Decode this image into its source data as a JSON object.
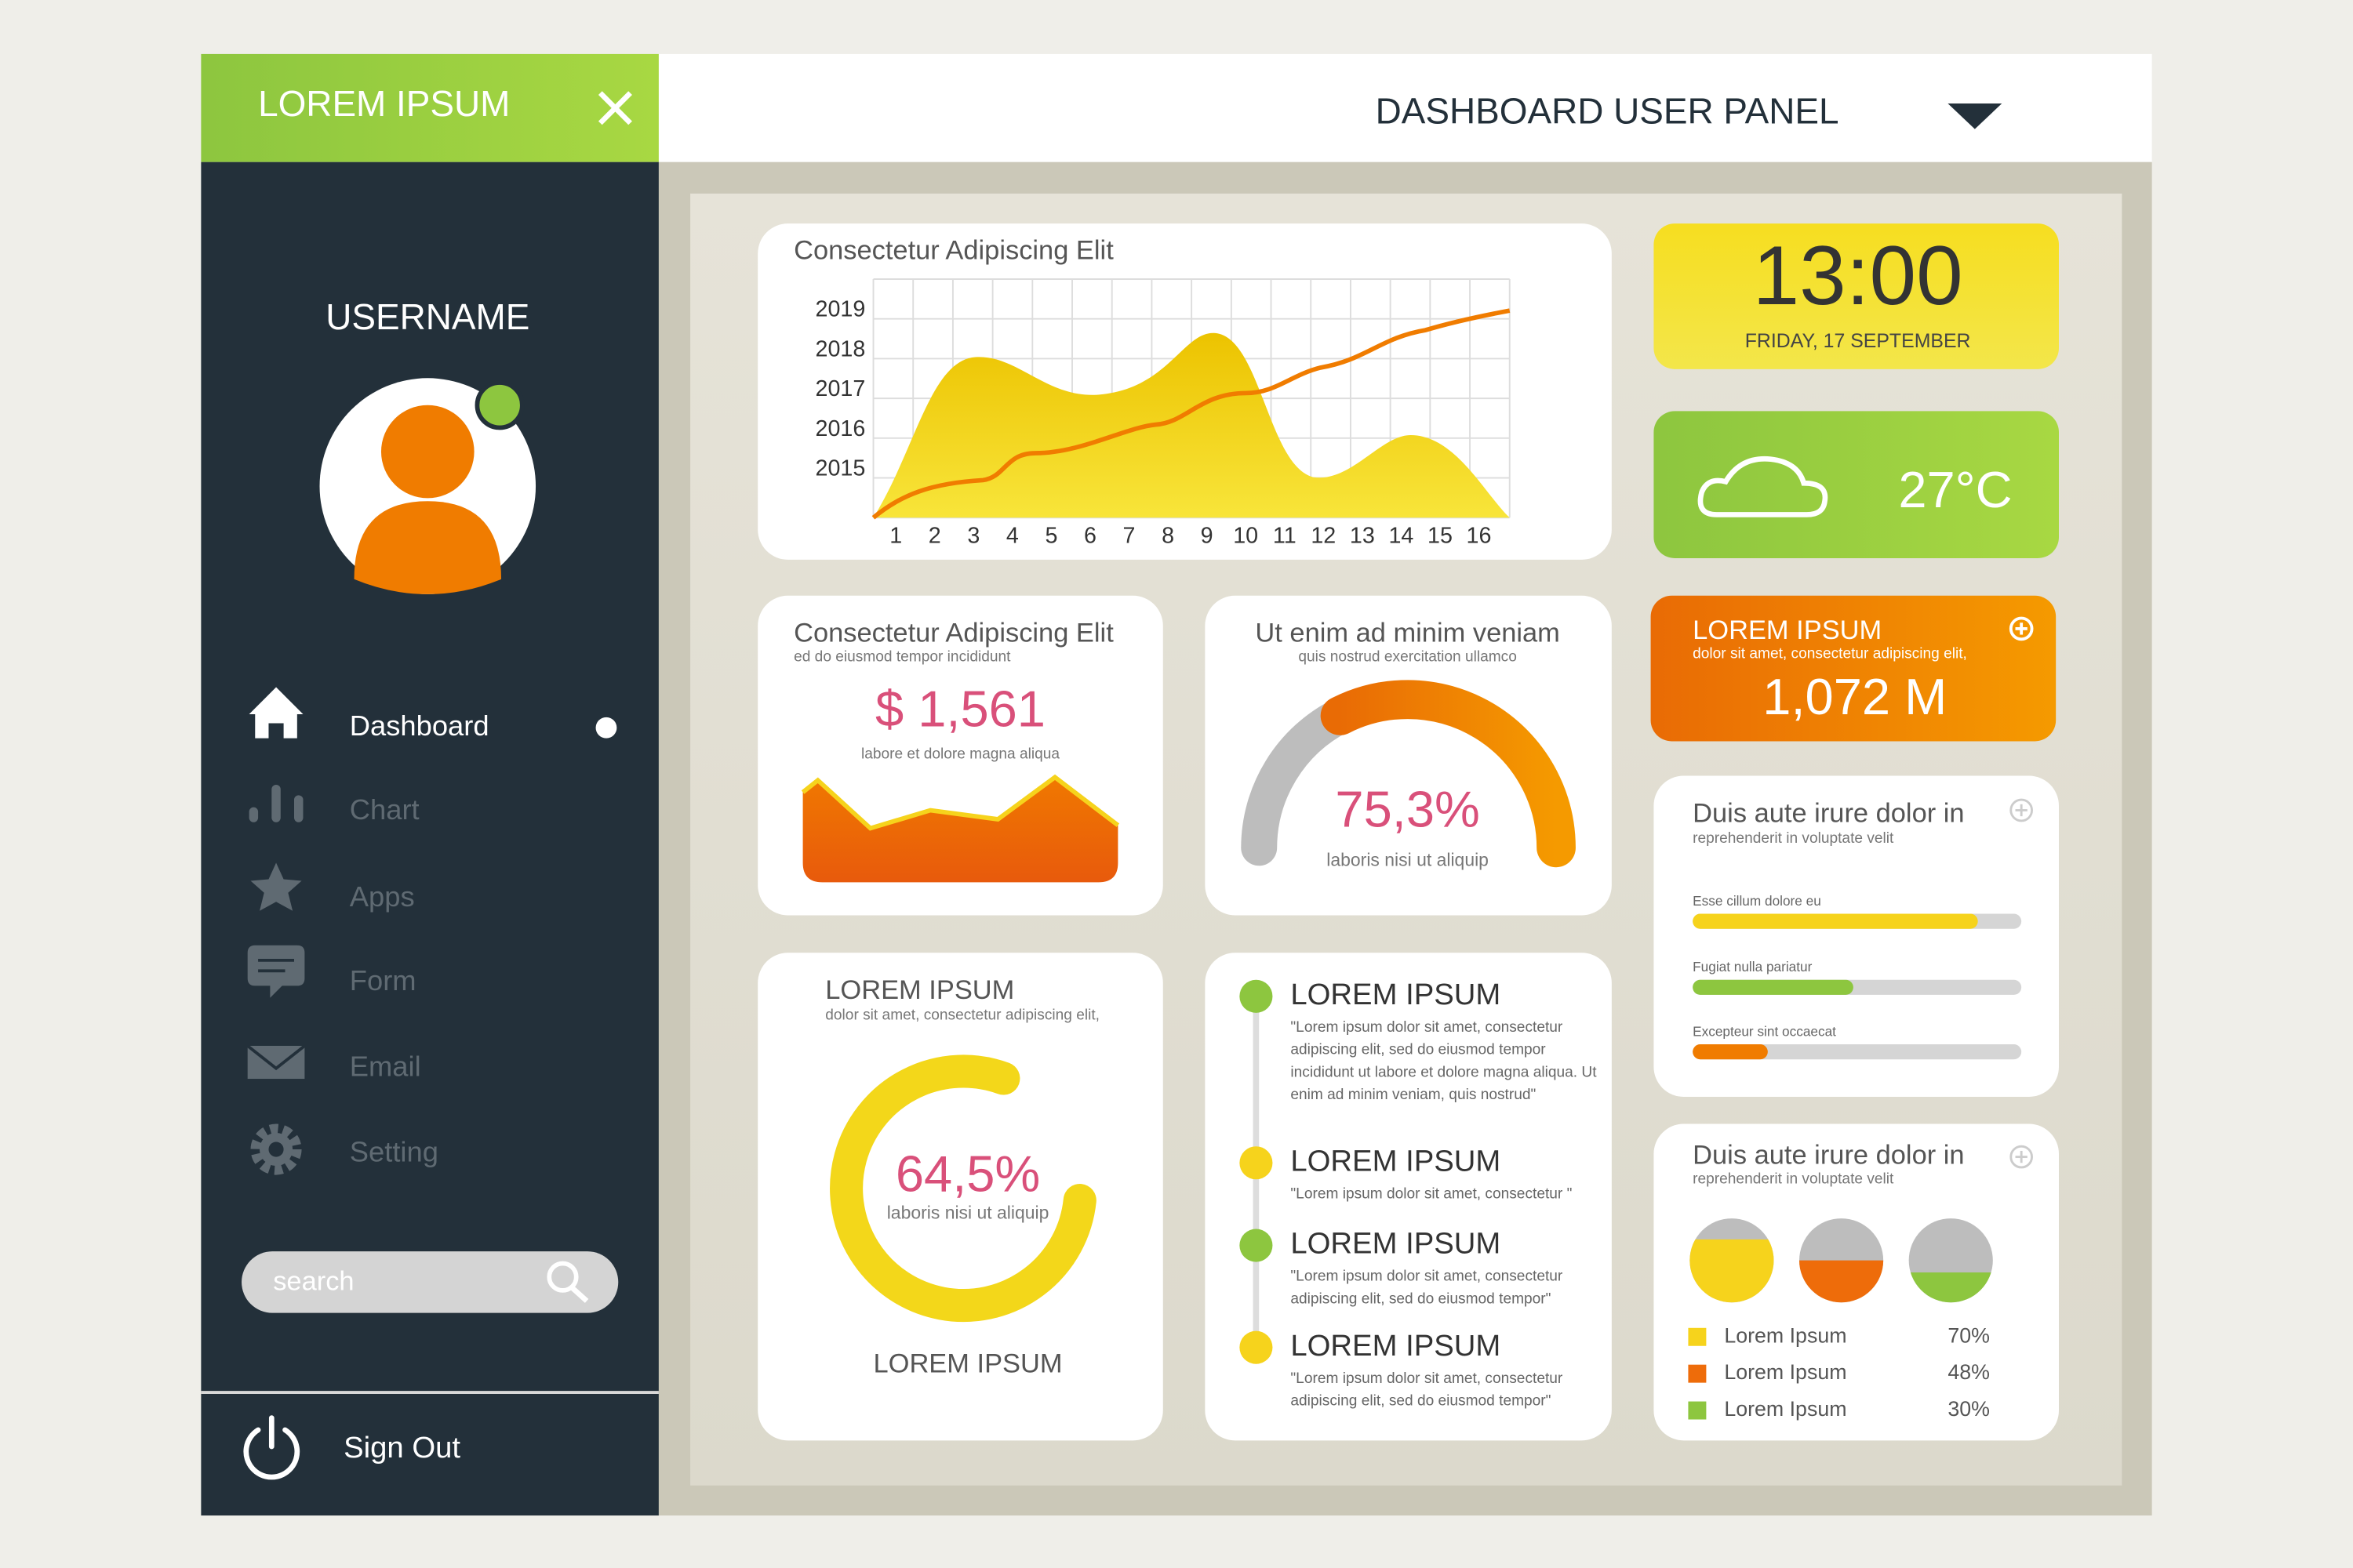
{
  "sidebar": {
    "brand": "LOREM IPSUM",
    "username": "USERNAME",
    "menu": [
      "Dashboard",
      "Chart",
      "Apps",
      "Form",
      "Email",
      "Setting"
    ],
    "search_placeholder": "search",
    "sign_out": "Sign Out"
  },
  "header": {
    "title": "DASHBOARD USER PANEL"
  },
  "area_chart": {
    "title": "Consectetur Adipiscing Elit",
    "y_labels": [
      "2019",
      "2018",
      "2017",
      "2016",
      "2015"
    ],
    "x_labels": [
      "1",
      "2",
      "3",
      "4",
      "5",
      "6",
      "7",
      "8",
      "9",
      "10",
      "11",
      "12",
      "13",
      "14",
      "15",
      "16"
    ]
  },
  "revenue": {
    "title": "Consectetur Adipiscing Elit",
    "subtitle": "ed do eiusmod tempor incididunt",
    "value": "$ 1,561",
    "caption": "labore et dolore magna aliqua"
  },
  "gauge": {
    "title": "Ut enim ad minim veniam",
    "subtitle": "quis nostrud exercitation ullamco",
    "value": "75,3%",
    "caption": "laboris nisi ut aliquip"
  },
  "donut": {
    "title": "LOREM IPSUM",
    "subtitle": "dolor sit amet, consectetur adipiscing elit,",
    "value": "64,5%",
    "caption": "laboris nisi ut aliquip",
    "footer": "LOREM IPSUM"
  },
  "timeline": {
    "items": [
      {
        "title": "LOREM IPSUM",
        "text": [
          "\"Lorem ipsum dolor sit amet, consectetur",
          "adipiscing elit, sed do eiusmod tempor",
          "incididunt ut labore et dolore magna aliqua. Ut",
          "enim ad minim veniam, quis nostrud\""
        ]
      },
      {
        "title": "LOREM IPSUM",
        "text": [
          "\"Lorem ipsum dolor sit amet, consectetur \""
        ]
      },
      {
        "title": "LOREM IPSUM",
        "text": [
          "\"Lorem ipsum dolor sit amet, consectetur",
          "adipiscing elit, sed do eiusmod tempor\""
        ]
      },
      {
        "title": "LOREM IPSUM",
        "text": [
          "\"Lorem ipsum dolor sit amet, consectetur",
          "adipiscing elit, sed do eiusmod tempor\""
        ]
      }
    ]
  },
  "clock": {
    "time": "13:00",
    "date": "FRIDAY, 17 SEPTEMBER"
  },
  "weather": {
    "temperature": "27°C"
  },
  "stat": {
    "title": "LOREM IPSUM",
    "subtitle": "dolor sit amet, consectetur adipiscing elit,",
    "value": "1,072 M"
  },
  "progress": {
    "title": "Duis aute irure dolor in",
    "subtitle": "reprehenderit in voluptate velit",
    "bars": [
      "Esse cillum dolore eu",
      "Fugiat nulla pariatur",
      "Excepteur sint occaecat"
    ]
  },
  "pies": {
    "title": "Duis aute irure dolor in",
    "subtitle": "reprehenderit in voluptate velit",
    "legend": [
      {
        "label": "Lorem Ipsum",
        "value": "70%"
      },
      {
        "label": "Lorem Ipsum",
        "value": "48%"
      },
      {
        "label": "Lorem Ipsum",
        "value": "30%"
      }
    ]
  }
}
